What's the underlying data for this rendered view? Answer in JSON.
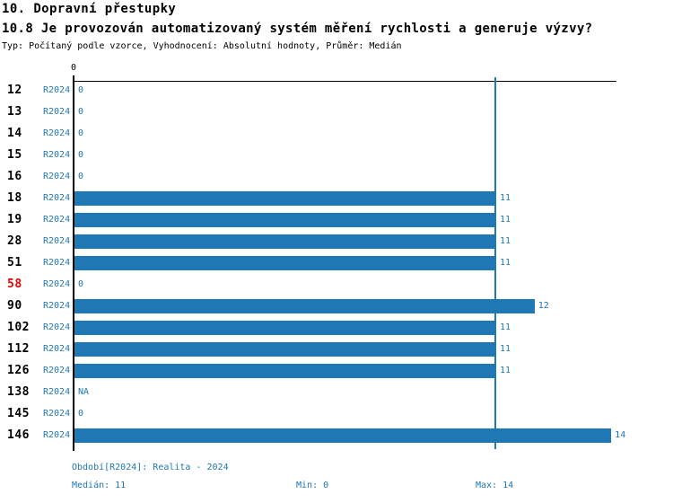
{
  "header": {
    "title": "10. Dopravní přestupky",
    "subtitle": "10.8 Je provozován automatizovaný systém měření rychlosti a generuje výzvy?",
    "meta": "Typ: Počítaný podle vzorce, Vyhodnocení: Absolutní hodnoty, Průměr: Medián"
  },
  "chart_data": {
    "type": "bar",
    "orientation": "horizontal",
    "title": "10.8 Je provozován automatizovaný systém měření rychlosti a generuje výzvy?",
    "series_name": "R2024",
    "x_axis": {
      "min": 0,
      "tick_labels": [
        "0"
      ],
      "zero_tick_label": "0"
    },
    "median_value": 11,
    "min_value": 0,
    "max_value": 14,
    "rows": [
      {
        "label": "12",
        "period": "R2024",
        "value": 0,
        "value_label": "0",
        "highlight": false
      },
      {
        "label": "13",
        "period": "R2024",
        "value": 0,
        "value_label": "0",
        "highlight": false
      },
      {
        "label": "14",
        "period": "R2024",
        "value": 0,
        "value_label": "0",
        "highlight": false
      },
      {
        "label": "15",
        "period": "R2024",
        "value": 0,
        "value_label": "0",
        "highlight": false
      },
      {
        "label": "16",
        "period": "R2024",
        "value": 0,
        "value_label": "0",
        "highlight": false
      },
      {
        "label": "18",
        "period": "R2024",
        "value": 11,
        "value_label": "11",
        "highlight": false
      },
      {
        "label": "19",
        "period": "R2024",
        "value": 11,
        "value_label": "11",
        "highlight": false
      },
      {
        "label": "28",
        "period": "R2024",
        "value": 11,
        "value_label": "11",
        "highlight": false
      },
      {
        "label": "51",
        "period": "R2024",
        "value": 11,
        "value_label": "11",
        "highlight": false
      },
      {
        "label": "58",
        "period": "R2024",
        "value": 0,
        "value_label": "0",
        "highlight": true
      },
      {
        "label": "90",
        "period": "R2024",
        "value": 12,
        "value_label": "12",
        "highlight": false
      },
      {
        "label": "102",
        "period": "R2024",
        "value": 11,
        "value_label": "11",
        "highlight": false
      },
      {
        "label": "112",
        "period": "R2024",
        "value": 11,
        "value_label": "11",
        "highlight": false
      },
      {
        "label": "126",
        "period": "R2024",
        "value": 11,
        "value_label": "11",
        "highlight": false
      },
      {
        "label": "138",
        "period": "R2024",
        "value": null,
        "value_label": "NA",
        "highlight": false
      },
      {
        "label": "145",
        "period": "R2024",
        "value": 0,
        "value_label": "0",
        "highlight": false
      },
      {
        "label": "146",
        "period": "R2024",
        "value": 14,
        "value_label": "14",
        "highlight": false
      }
    ]
  },
  "footer": {
    "period_note": "Období[R2024]: Realita - 2024",
    "median_label": "Medián: 11",
    "min_label": "Min: 0",
    "max_label": "Max: 14"
  },
  "colors": {
    "bar": "#1f77b4",
    "blue_text": "#1f77b4",
    "median_line": "#1f77b4",
    "highlight_red": "#e60000",
    "axis": "#000000"
  }
}
